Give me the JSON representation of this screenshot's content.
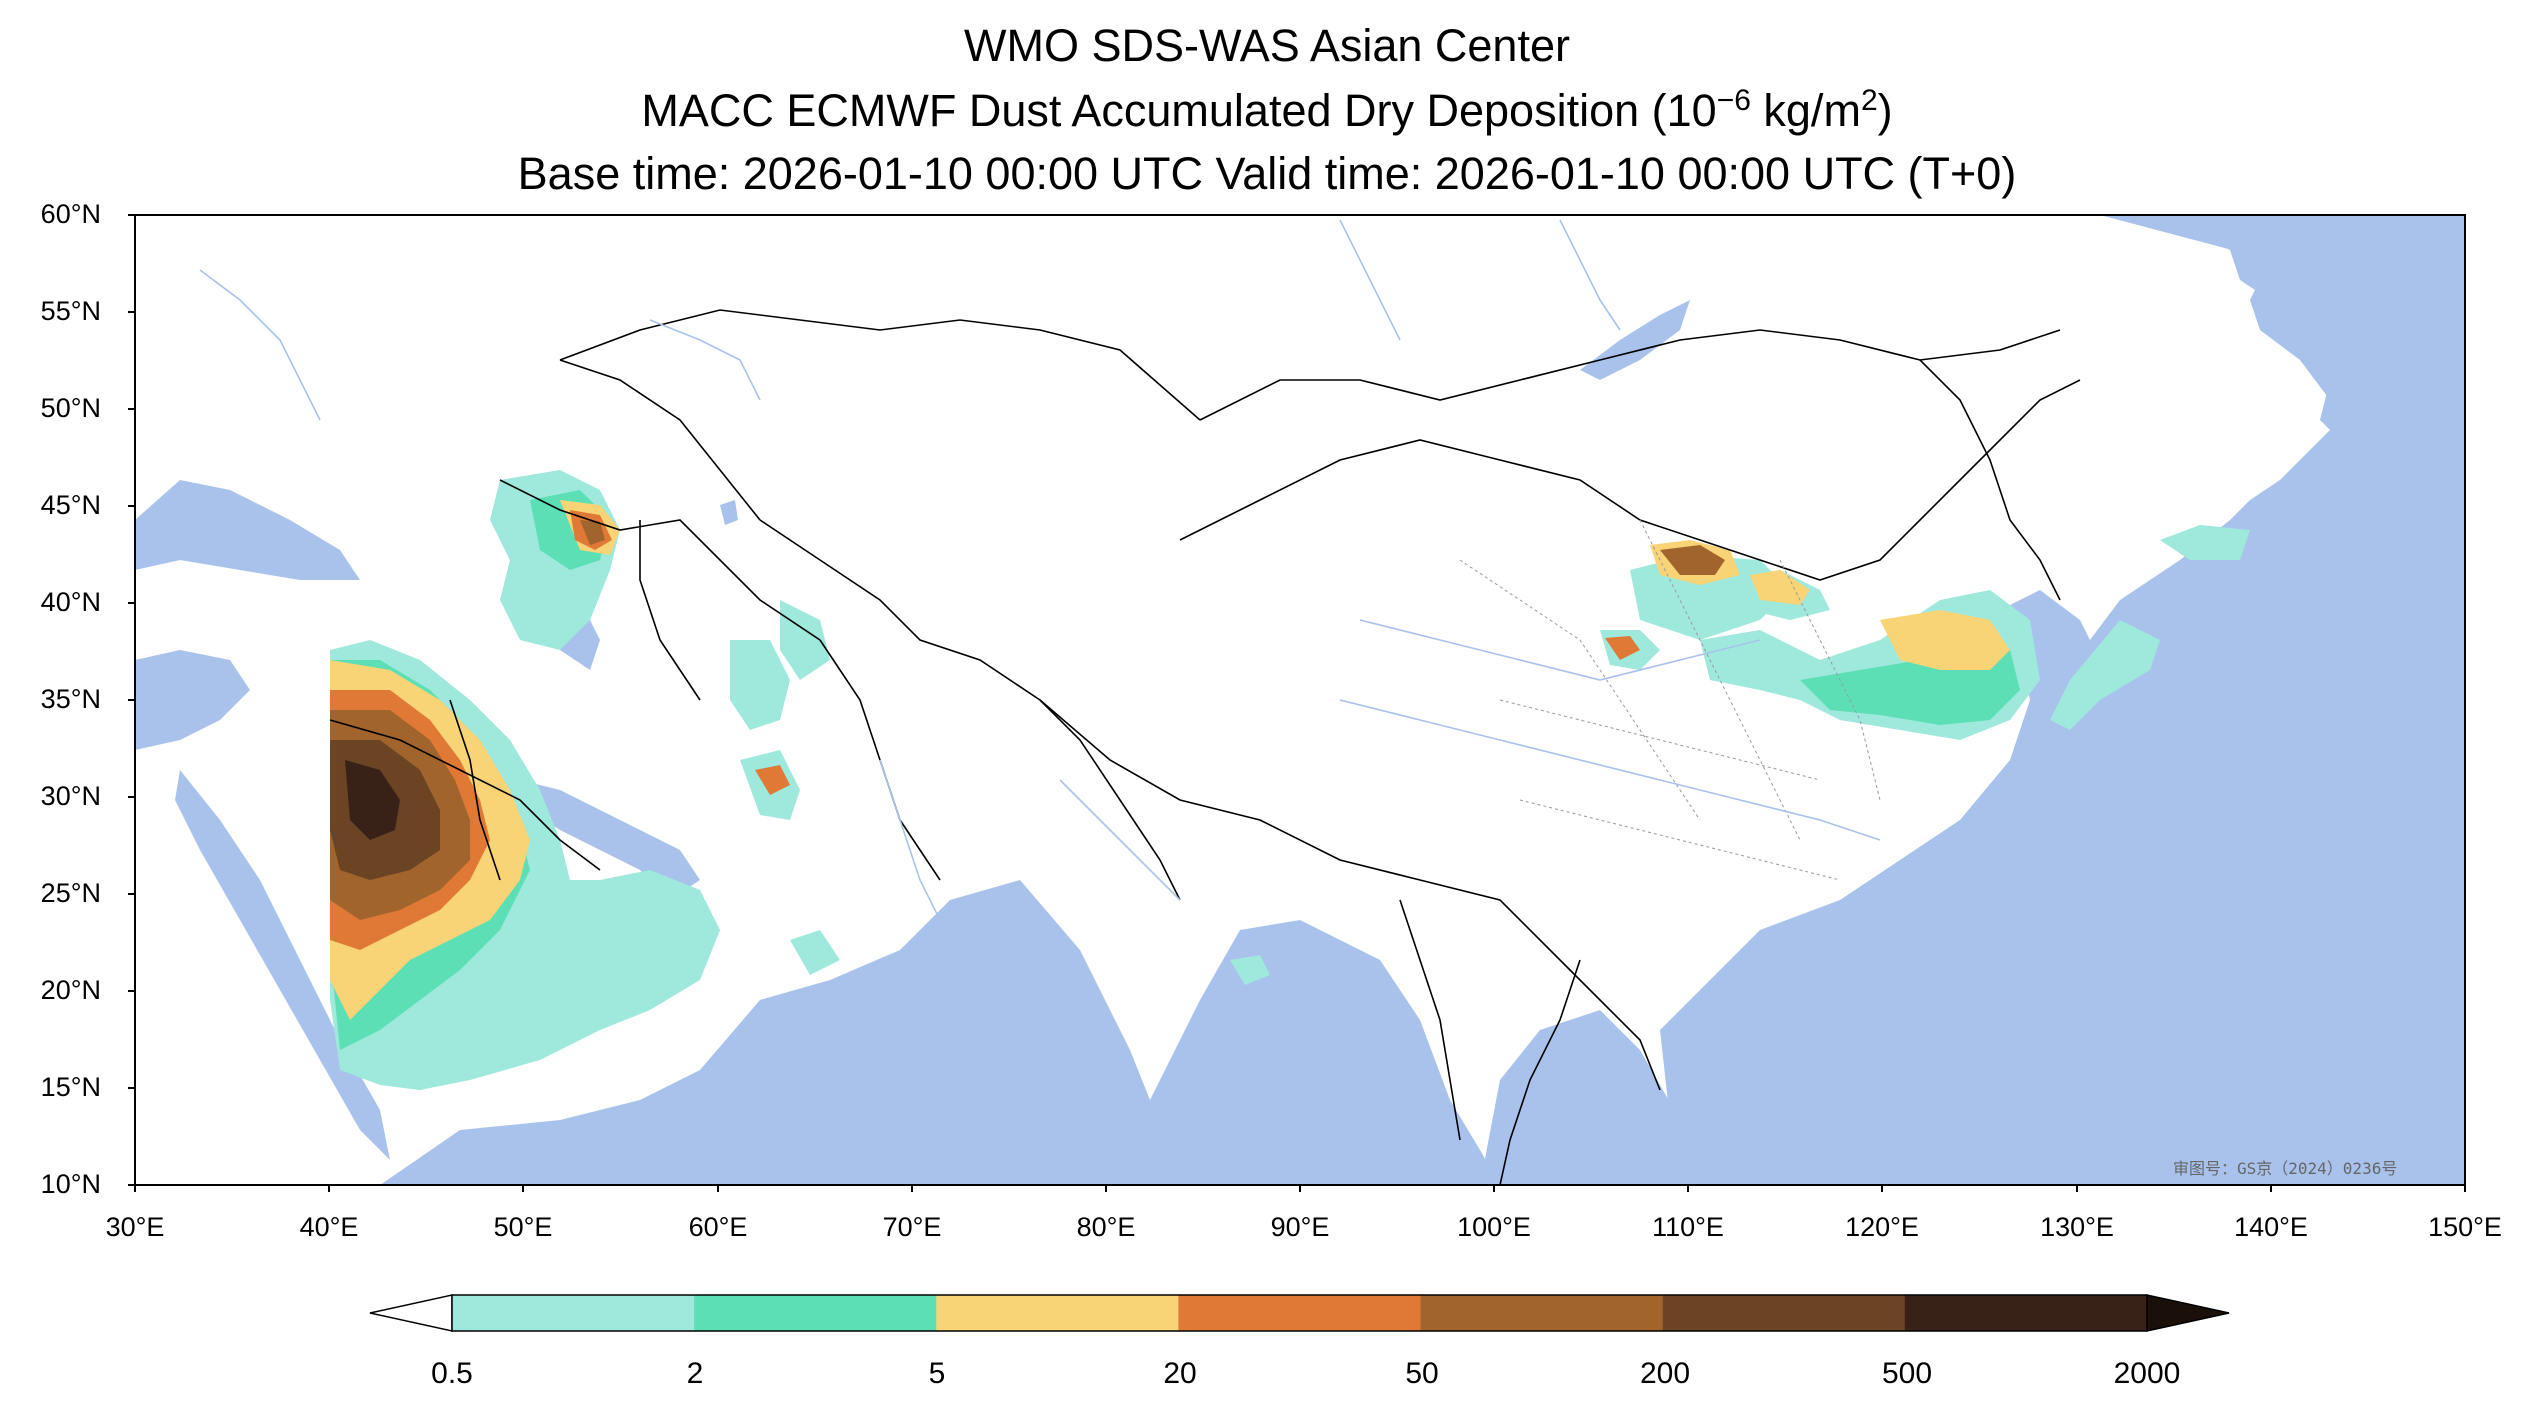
{
  "titles": {
    "line1": "WMO SDS-WAS Asian Center",
    "line2_main": "MACC ECMWF Dust Accumulated Dry Deposition (10",
    "line2_exp": "−6",
    "line2_unit": " kg/m",
    "line2_sq": "2",
    "line2_close": ")",
    "line3": "Base time: 2026-01-10 00:00 UTC Valid time: 2026-01-10 00:00 UTC (T+0)"
  },
  "axes": {
    "lat_ticks": [
      "60°N",
      "55°N",
      "50°N",
      "45°N",
      "40°N",
      "35°N",
      "30°N",
      "25°N",
      "20°N",
      "15°N",
      "10°N"
    ],
    "lon_ticks": [
      "30°E",
      "40°E",
      "50°E",
      "60°E",
      "70°E",
      "80°E",
      "90°E",
      "100°E",
      "110°E",
      "120°E",
      "130°E",
      "140°E",
      "150°E"
    ],
    "lat_range": [
      10,
      60
    ],
    "lon_range": [
      30,
      150
    ]
  },
  "colorbar": {
    "labels": [
      "0.5",
      "2",
      "5",
      "20",
      "50",
      "200",
      "500",
      "2000"
    ],
    "colors": [
      "#9ee8dc",
      "#5ddfb5",
      "#f8d477",
      "#e07936",
      "#a2642d",
      "#6a4423",
      "#382218"
    ],
    "extend_low_color": "#ffffff",
    "extend_high_color": "#1b0f09"
  },
  "colors": {
    "ocean": "#a8c2ec",
    "land": "#ffffff",
    "border": "#000000",
    "river": "#a8c2ec"
  },
  "watermark": "审图号：GS京（2024）0236号"
}
